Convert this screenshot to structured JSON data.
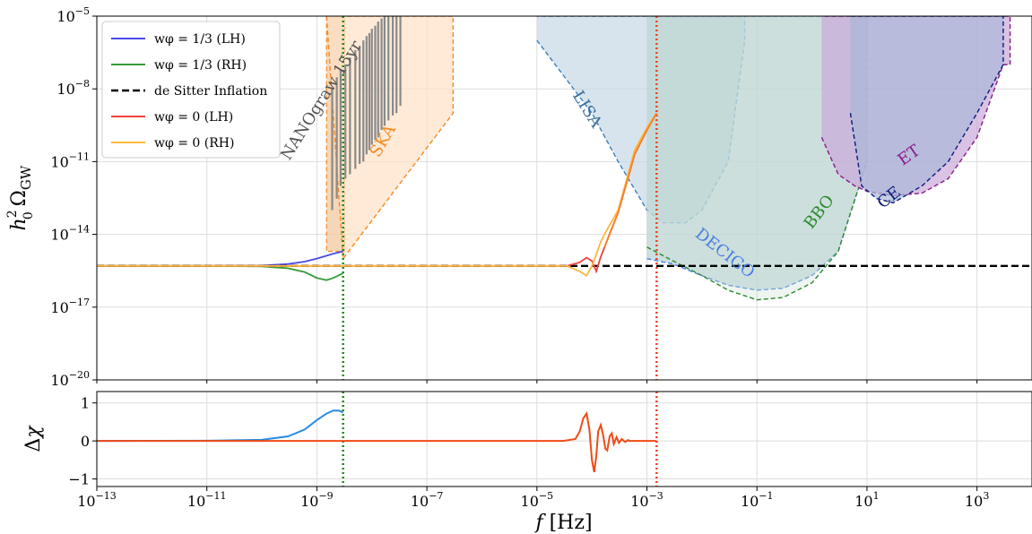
{
  "chart_data": [
    {
      "panel": "top",
      "type": "line",
      "x_scale": "log",
      "y_scale": "log",
      "xlim": [
        1e-13,
        10000
      ],
      "ylim": [
        1e-20,
        1e-05
      ],
      "ylabel": "h0² ΩGW",
      "y_ticks": [
        {
          "value": 1e-20,
          "base": "10",
          "exp": "−20"
        },
        {
          "value": 1e-17,
          "base": "10",
          "exp": "−17"
        },
        {
          "value": 1e-14,
          "base": "10",
          "exp": "−14"
        },
        {
          "value": 1e-11,
          "base": "10",
          "exp": "−11"
        },
        {
          "value": 1e-08,
          "base": "10",
          "exp": "−8"
        },
        {
          "value": 1e-05,
          "base": "10",
          "exp": "−5"
        }
      ],
      "grid": true,
      "legend_position": "top-left",
      "legend": [
        {
          "label": "wφ = 1/3 (LH)",
          "color": "#4a4ae8",
          "dash": "solid"
        },
        {
          "label": "wφ = 1/3 (RH)",
          "color": "#3a9a3a",
          "dash": "solid"
        },
        {
          "label": "de Sitter Inflation",
          "color": "#000000",
          "dash": "dashed"
        },
        {
          "label": "wφ = 0 (LH)",
          "color": "#f04040",
          "dash": "solid"
        },
        {
          "label": "wφ = 0 (RH)",
          "color": "#f9b93f",
          "dash": "solid"
        }
      ],
      "series": [
        {
          "name": "wφ = 1/3 (LH)",
          "color": "#4a4ae8",
          "x": [
            1e-13,
            1e-11,
            1e-10,
            3e-10,
            6e-10,
            1e-09,
            2e-09,
            3e-09
          ],
          "y": [
            5e-16,
            5e-16,
            5.2e-16,
            6e-16,
            7.5e-16,
            1e-15,
            1.6e-15,
            2e-15
          ]
        },
        {
          "name": "wφ = 1/3 (RH)",
          "color": "#3a9a3a",
          "x": [
            1e-13,
            1e-11,
            1e-10,
            3e-10,
            6e-10,
            1e-09,
            1.5e-09,
            2e-09,
            3e-09
          ],
          "y": [
            5e-16,
            5e-16,
            4.8e-16,
            4e-16,
            2.8e-16,
            1.6e-16,
            1.3e-16,
            1.6e-16,
            2.5e-16
          ]
        },
        {
          "name": "de Sitter Inflation",
          "color": "#000000",
          "x": [
            1e-13,
            10000
          ],
          "y": [
            5e-16,
            5e-16
          ]
        },
        {
          "name": "wφ = 0 (LH)",
          "color": "#f04040",
          "x": [
            1e-13,
            3.5e-05,
            6e-05,
            8e-05,
            0.0001,
            0.00012,
            0.000145,
            0.00017,
            0.0002,
            0.0003,
            0.0006,
            0.001,
            0.0015
          ],
          "y": [
            5e-16,
            5e-16,
            7e-16,
            1.1e-15,
            8e-16,
            3e-16,
            1.2e-15,
            3e-15,
            8e-15,
            8e-14,
            2e-11,
            2e-10,
            1e-09
          ]
        },
        {
          "name": "wφ = 0 (RH)",
          "color": "#f9b93f",
          "x": [
            1e-13,
            3.5e-05,
            6e-05,
            8e-05,
            0.0001,
            0.00012,
            0.000145,
            0.00017,
            0.0002,
            0.0003,
            0.0006,
            0.001,
            0.0015
          ],
          "y": [
            5e-16,
            5e-16,
            3e-16,
            2e-16,
            5e-16,
            1.5e-15,
            5e-15,
            1e-14,
            2e-14,
            1e-13,
            3e-11,
            2.5e-10,
            1e-09
          ]
        },
        {
          "name": "wφ = 0 (RH) overlap",
          "color": "#f5822a",
          "x": [
            0.00017,
            0.0003,
            0.0006,
            0.001,
            0.0015
          ],
          "y": [
            3e-15,
            8e-14,
            2e-11,
            2e-10,
            1e-09
          ]
        }
      ],
      "vlines": [
        {
          "x": 3e-09,
          "color": "#1f8a1f"
        },
        {
          "x": 0.0015,
          "color": "#f04020"
        }
      ],
      "regions": [
        {
          "name": "NANOgrav 15yr",
          "fill": "#f2c9a0",
          "edge": "#f58a1f",
          "x": [
            1.5e-09,
            3.2e-09
          ],
          "y_bottom": 2e-15,
          "y_top": 1e-05
        },
        {
          "name": "SKA",
          "fill": "#fde1c6",
          "edge": "#f58a1f",
          "x": [
            1.5e-09,
            3e-09,
            3e-07,
            3e-07,
            3.2e-09
          ],
          "y": [
            1e-05,
            1e-15,
            1e-09,
            1e-05,
            1e-05
          ]
        },
        {
          "name": "LISA",
          "fill": "#c7d8e6",
          "edge": "#3a7fbf",
          "x": [
            1e-05,
            0.0001,
            0.0003,
            0.001,
            0.002,
            0.005,
            0.01,
            0.03,
            0.06,
            0.06,
            1e-05
          ],
          "y": [
            1e-06,
            1e-09,
            1e-11,
            1e-13,
            3e-14,
            3e-14,
            1e-13,
            1e-11,
            1e-06,
            1e-05,
            1e-05
          ]
        },
        {
          "name": "DECIGO",
          "fill": "#b5d0d3",
          "edge": "#4a7fe0",
          "x": [
            0.001,
            0.003,
            0.01,
            0.03,
            0.1,
            0.3,
            1,
            3,
            10,
            10,
            0.001
          ],
          "y": [
            1e-15,
            6e-16,
            2e-16,
            8e-17,
            5e-17,
            6e-17,
            2e-16,
            2e-15,
            1e-11,
            1e-05,
            1e-05
          ]
        },
        {
          "name": "BBO",
          "fill": "#cfe2d6",
          "edge": "#2a8a2a",
          "x": [
            0.001,
            0.003,
            0.01,
            0.03,
            0.1,
            0.3,
            1,
            3,
            10
          ],
          "y": [
            3e-15,
            8e-16,
            2e-16,
            5e-17,
            2e-17,
            2.5e-17,
            1e-16,
            2e-15,
            1e-11
          ]
        },
        {
          "name": "ET",
          "fill": "#c9a8d8",
          "edge": "#8a1a8a",
          "x": [
            1.5,
            3,
            6,
            10,
            30,
            100,
            300,
            1000,
            3000,
            4000,
            4000,
            1.5
          ],
          "y": [
            1e-10,
            3e-12,
            1e-12,
            6e-13,
            4e-13,
            5e-13,
            2e-12,
            1e-10,
            1e-07,
            1e-07,
            1e-05,
            1e-05
          ]
        },
        {
          "name": "CE",
          "fill": "#a9b8d8",
          "edge": "#0a1a7a",
          "x": [
            5,
            8,
            15,
            30,
            100,
            300,
            1000,
            3000,
            3000,
            5
          ],
          "y": [
            1e-09,
            1e-12,
            3e-13,
            2e-13,
            1e-12,
            1e-11,
            1e-09,
            1e-07,
            1e-05,
            1e-05
          ]
        }
      ]
    },
    {
      "panel": "bottom",
      "type": "line",
      "x_scale": "log",
      "y_scale": "linear",
      "xlim": [
        1e-13,
        10000
      ],
      "ylim": [
        -1.2,
        1.3
      ],
      "xlabel": "f [Hz]",
      "ylabel": "Δχ",
      "x_ticks": [
        {
          "value": 1e-13,
          "base": "10",
          "exp": "−13"
        },
        {
          "value": 1e-11,
          "base": "10",
          "exp": "−11"
        },
        {
          "value": 1e-09,
          "base": "10",
          "exp": "−9"
        },
        {
          "value": 1e-07,
          "base": "10",
          "exp": "−7"
        },
        {
          "value": 1e-05,
          "base": "10",
          "exp": "−5"
        },
        {
          "value": 0.001,
          "base": "10",
          "exp": "−3"
        },
        {
          "value": 0.1,
          "base": "10",
          "exp": "−1"
        },
        {
          "value": 10,
          "base": "10",
          "exp": "1"
        },
        {
          "value": 1000,
          "base": "10",
          "exp": "3"
        }
      ],
      "y_ticks": [
        {
          "value": 1,
          "label": "1"
        },
        {
          "value": 0,
          "label": "0"
        },
        {
          "value": -1,
          "label": "−1"
        }
      ],
      "grid": true,
      "series": [
        {
          "name": "wφ = 1/3",
          "color": "#2a8ae0",
          "x": [
            1e-13,
            1e-11,
            1e-10,
            3e-10,
            6e-10,
            1e-09,
            1.5e-09,
            2e-09,
            2.5e-09,
            3e-09
          ],
          "y": [
            0,
            0.005,
            0.03,
            0.12,
            0.3,
            0.55,
            0.72,
            0.8,
            0.8,
            0.75
          ]
        },
        {
          "name": "wφ = 0",
          "color": "#f04a14",
          "x": [
            1e-13,
            3e-05,
            5e-05,
            6e-05,
            7e-05,
            8e-05,
            9e-05,
            0.0001,
            0.00011,
            0.00012,
            0.00013,
            0.000145,
            0.00016,
            0.000175,
            0.00019,
            0.00021,
            0.00023,
            0.00025,
            0.00028,
            0.00031,
            0.00035,
            0.0004,
            0.00045,
            0.0005,
            0.0015
          ],
          "y": [
            0,
            0,
            0.05,
            0.25,
            0.6,
            0.72,
            0.3,
            -0.5,
            -0.82,
            -0.4,
            0.25,
            0.42,
            0.15,
            -0.2,
            -0.25,
            0.12,
            0.2,
            -0.08,
            0.1,
            -0.05,
            0.05,
            -0.03,
            0.02,
            0,
            0
          ]
        }
      ],
      "vlines": [
        {
          "x": 3e-09,
          "color": "#1f8a1f"
        },
        {
          "x": 0.0015,
          "color": "#f04020"
        }
      ]
    }
  ]
}
